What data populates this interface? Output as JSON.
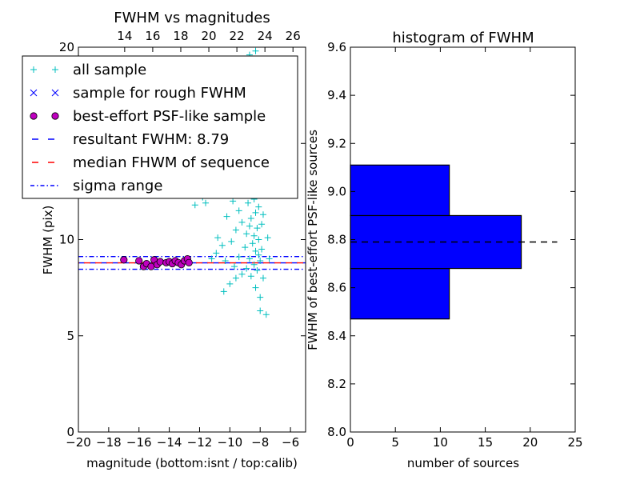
{
  "chart_data": [
    {
      "type": "scatter",
      "title": "FWHM vs magnitudes",
      "xlabel": "magnitude (bottom:isnt / top:calib)",
      "ylabel": "FWHM (pix)",
      "xlim": [
        -20,
        -5
      ],
      "ylim": [
        0,
        20
      ],
      "xticks": [
        -20,
        -18,
        -16,
        -14,
        -12,
        -10,
        -8,
        -6
      ],
      "xtick_labels": [
        "−20",
        "−18",
        "−16",
        "−14",
        "−12",
        "−10",
        "−8",
        "−6"
      ],
      "yticks": [
        0,
        5,
        10,
        15,
        20
      ],
      "ytick_labels": [
        "0",
        "5",
        "10",
        "15",
        "20"
      ],
      "top_xticks": [
        14,
        16,
        18,
        20,
        22,
        24,
        26
      ],
      "top_xtick_labels": [
        "14",
        "16",
        "18",
        "20",
        "22",
        "24",
        "26"
      ],
      "top_xlim": [
        10.7,
        26.9
      ],
      "legend_placement": "upper-left",
      "grid": false,
      "legend": [
        {
          "label": "all sample",
          "marker": "plus",
          "color": "#00bfbf"
        },
        {
          "label": "sample for rough FWHM",
          "marker": "x",
          "color": "#0000ff"
        },
        {
          "label": "best-effort PSF-like sample",
          "marker": "circle",
          "color": "#bf00bf"
        },
        {
          "label": "resultant FWHM: 8.79",
          "marker": "dashed-line",
          "color": "#0000ff"
        },
        {
          "label": "median FHWM of sequence",
          "marker": "dashed-line",
          "color": "#ff0000"
        },
        {
          "label": "sigma range",
          "marker": "dashdot-line",
          "color": "#0000ff"
        }
      ],
      "series": [
        {
          "name": "all sample",
          "marker": "plus",
          "color": "#00bfbf",
          "points": [
            [
              -12.6,
              14.0
            ],
            [
              -12.3,
              11.8
            ],
            [
              -12.0,
              13.6
            ],
            [
              -11.8,
              12.2
            ],
            [
              -11.6,
              11.9
            ],
            [
              -11.3,
              13.1
            ],
            [
              -11.0,
              12.3
            ],
            [
              -10.9,
              9.3
            ],
            [
              -10.8,
              10.1
            ],
            [
              -10.6,
              12.8
            ],
            [
              -10.5,
              9.7
            ],
            [
              -10.3,
              8.9
            ],
            [
              -10.2,
              11.2
            ],
            [
              -10.0,
              13.4
            ],
            [
              -10.0,
              7.7
            ],
            [
              -9.9,
              9.9
            ],
            [
              -9.8,
              12.0
            ],
            [
              -9.7,
              8.6
            ],
            [
              -9.6,
              10.5
            ],
            [
              -9.5,
              14.5
            ],
            [
              -9.4,
              9.1
            ],
            [
              -9.4,
              11.5
            ],
            [
              -9.3,
              13.0
            ],
            [
              -9.2,
              8.2
            ],
            [
              -9.2,
              10.9
            ],
            [
              -9.1,
              12.6
            ],
            [
              -9.0,
              9.6
            ],
            [
              -9.0,
              15.6
            ],
            [
              -8.9,
              10.3
            ],
            [
              -8.9,
              8.5
            ],
            [
              -8.8,
              11.9
            ],
            [
              -8.8,
              13.8
            ],
            [
              -8.7,
              9.0
            ],
            [
              -8.7,
              10.7
            ],
            [
              -8.7,
              12.4
            ],
            [
              -8.6,
              16.3
            ],
            [
              -8.6,
              8.1
            ],
            [
              -8.6,
              11.1
            ],
            [
              -8.5,
              9.8
            ],
            [
              -8.5,
              13.3
            ],
            [
              -8.5,
              14.9
            ],
            [
              -8.4,
              10.2
            ],
            [
              -8.4,
              8.7
            ],
            [
              -8.4,
              12.1
            ],
            [
              -8.3,
              11.4
            ],
            [
              -8.3,
              9.4
            ],
            [
              -8.3,
              15.2
            ],
            [
              -8.3,
              7.5
            ],
            [
              -8.2,
              10.6
            ],
            [
              -8.2,
              12.8
            ],
            [
              -8.2,
              8.4
            ],
            [
              -8.2,
              17.5
            ],
            [
              -8.1,
              9.2
            ],
            [
              -8.1,
              11.7
            ],
            [
              -8.1,
              13.9
            ],
            [
              -8.1,
              10.0
            ],
            [
              -8.0,
              8.9
            ],
            [
              -8.0,
              12.3
            ],
            [
              -8.0,
              7.0
            ],
            [
              -8.0,
              6.3
            ],
            [
              -7.9,
              10.8
            ],
            [
              -7.9,
              9.5
            ],
            [
              -7.9,
              14.2
            ],
            [
              -7.8,
              11.3
            ],
            [
              -7.8,
              8.0
            ],
            [
              -7.6,
              6.1
            ],
            [
              -7.5,
              10.1
            ],
            [
              -7.4,
              9.0
            ],
            [
              -8.7,
              19.6
            ],
            [
              -8.6,
              19.3
            ],
            [
              -8.4,
              18.2
            ],
            [
              -8.3,
              19.8
            ],
            [
              -8.2,
              16.9
            ],
            [
              -8.9,
              17.8
            ],
            [
              -9.1,
              18.7
            ],
            [
              -10.4,
              7.3
            ],
            [
              -9.6,
              8.0
            ],
            [
              -11.2,
              9.0
            ]
          ]
        },
        {
          "name": "best-effort PSF-like sample",
          "marker": "circle",
          "color": "#bf00bf",
          "points": [
            [
              -17.0,
              8.95
            ],
            [
              -16.0,
              8.9
            ],
            [
              -15.7,
              8.6
            ],
            [
              -15.5,
              8.75
            ],
            [
              -15.2,
              8.6
            ],
            [
              -15.0,
              8.95
            ],
            [
              -14.8,
              8.7
            ],
            [
              -14.6,
              8.85
            ],
            [
              -14.2,
              8.8
            ],
            [
              -14.0,
              8.85
            ],
            [
              -13.8,
              8.75
            ],
            [
              -13.6,
              8.9
            ],
            [
              -13.4,
              8.8
            ],
            [
              -13.2,
              8.7
            ],
            [
              -13.0,
              8.9
            ],
            [
              -12.8,
              9.0
            ],
            [
              -12.7,
              8.8
            ]
          ]
        }
      ],
      "hlines": [
        {
          "name": "resultant FWHM: 8.79",
          "y": 8.79,
          "style": "dashed",
          "color": "#0000ff"
        },
        {
          "name": "median FHWM of sequence",
          "y": 8.79,
          "style": "dashed",
          "color": "#ff0000"
        },
        {
          "name": "sigma range",
          "y": 9.12,
          "style": "dashdot",
          "color": "#0000ff"
        },
        {
          "name": "sigma range",
          "y": 8.46,
          "style": "dashdot",
          "color": "#0000ff"
        }
      ]
    },
    {
      "type": "bar",
      "orientation": "horizontal",
      "title": "histogram of FWHM",
      "xlabel": "number of sources",
      "ylabel": "FWHM of best-effort PSF-like sources",
      "xlim": [
        0,
        25
      ],
      "ylim": [
        8.0,
        9.6
      ],
      "xticks": [
        0,
        5,
        10,
        15,
        20,
        25
      ],
      "xtick_labels": [
        "0",
        "5",
        "10",
        "15",
        "20",
        "25"
      ],
      "yticks": [
        8.0,
        8.2,
        8.4,
        8.6,
        8.8,
        9.0,
        9.2,
        9.4,
        9.6
      ],
      "ytick_labels": [
        "8.0",
        "8.2",
        "8.4",
        "8.6",
        "8.8",
        "9.0",
        "9.2",
        "9.4",
        "9.6"
      ],
      "color": "#0000ff",
      "grid": false,
      "bins": [
        {
          "low": 8.47,
          "high": 8.68,
          "count": 11
        },
        {
          "low": 8.68,
          "high": 8.9,
          "count": 19
        },
        {
          "low": 8.9,
          "high": 9.11,
          "count": 11
        }
      ],
      "hline": {
        "y": 8.79,
        "xmax": 23,
        "style": "dashed",
        "color": "#000000"
      }
    }
  ]
}
